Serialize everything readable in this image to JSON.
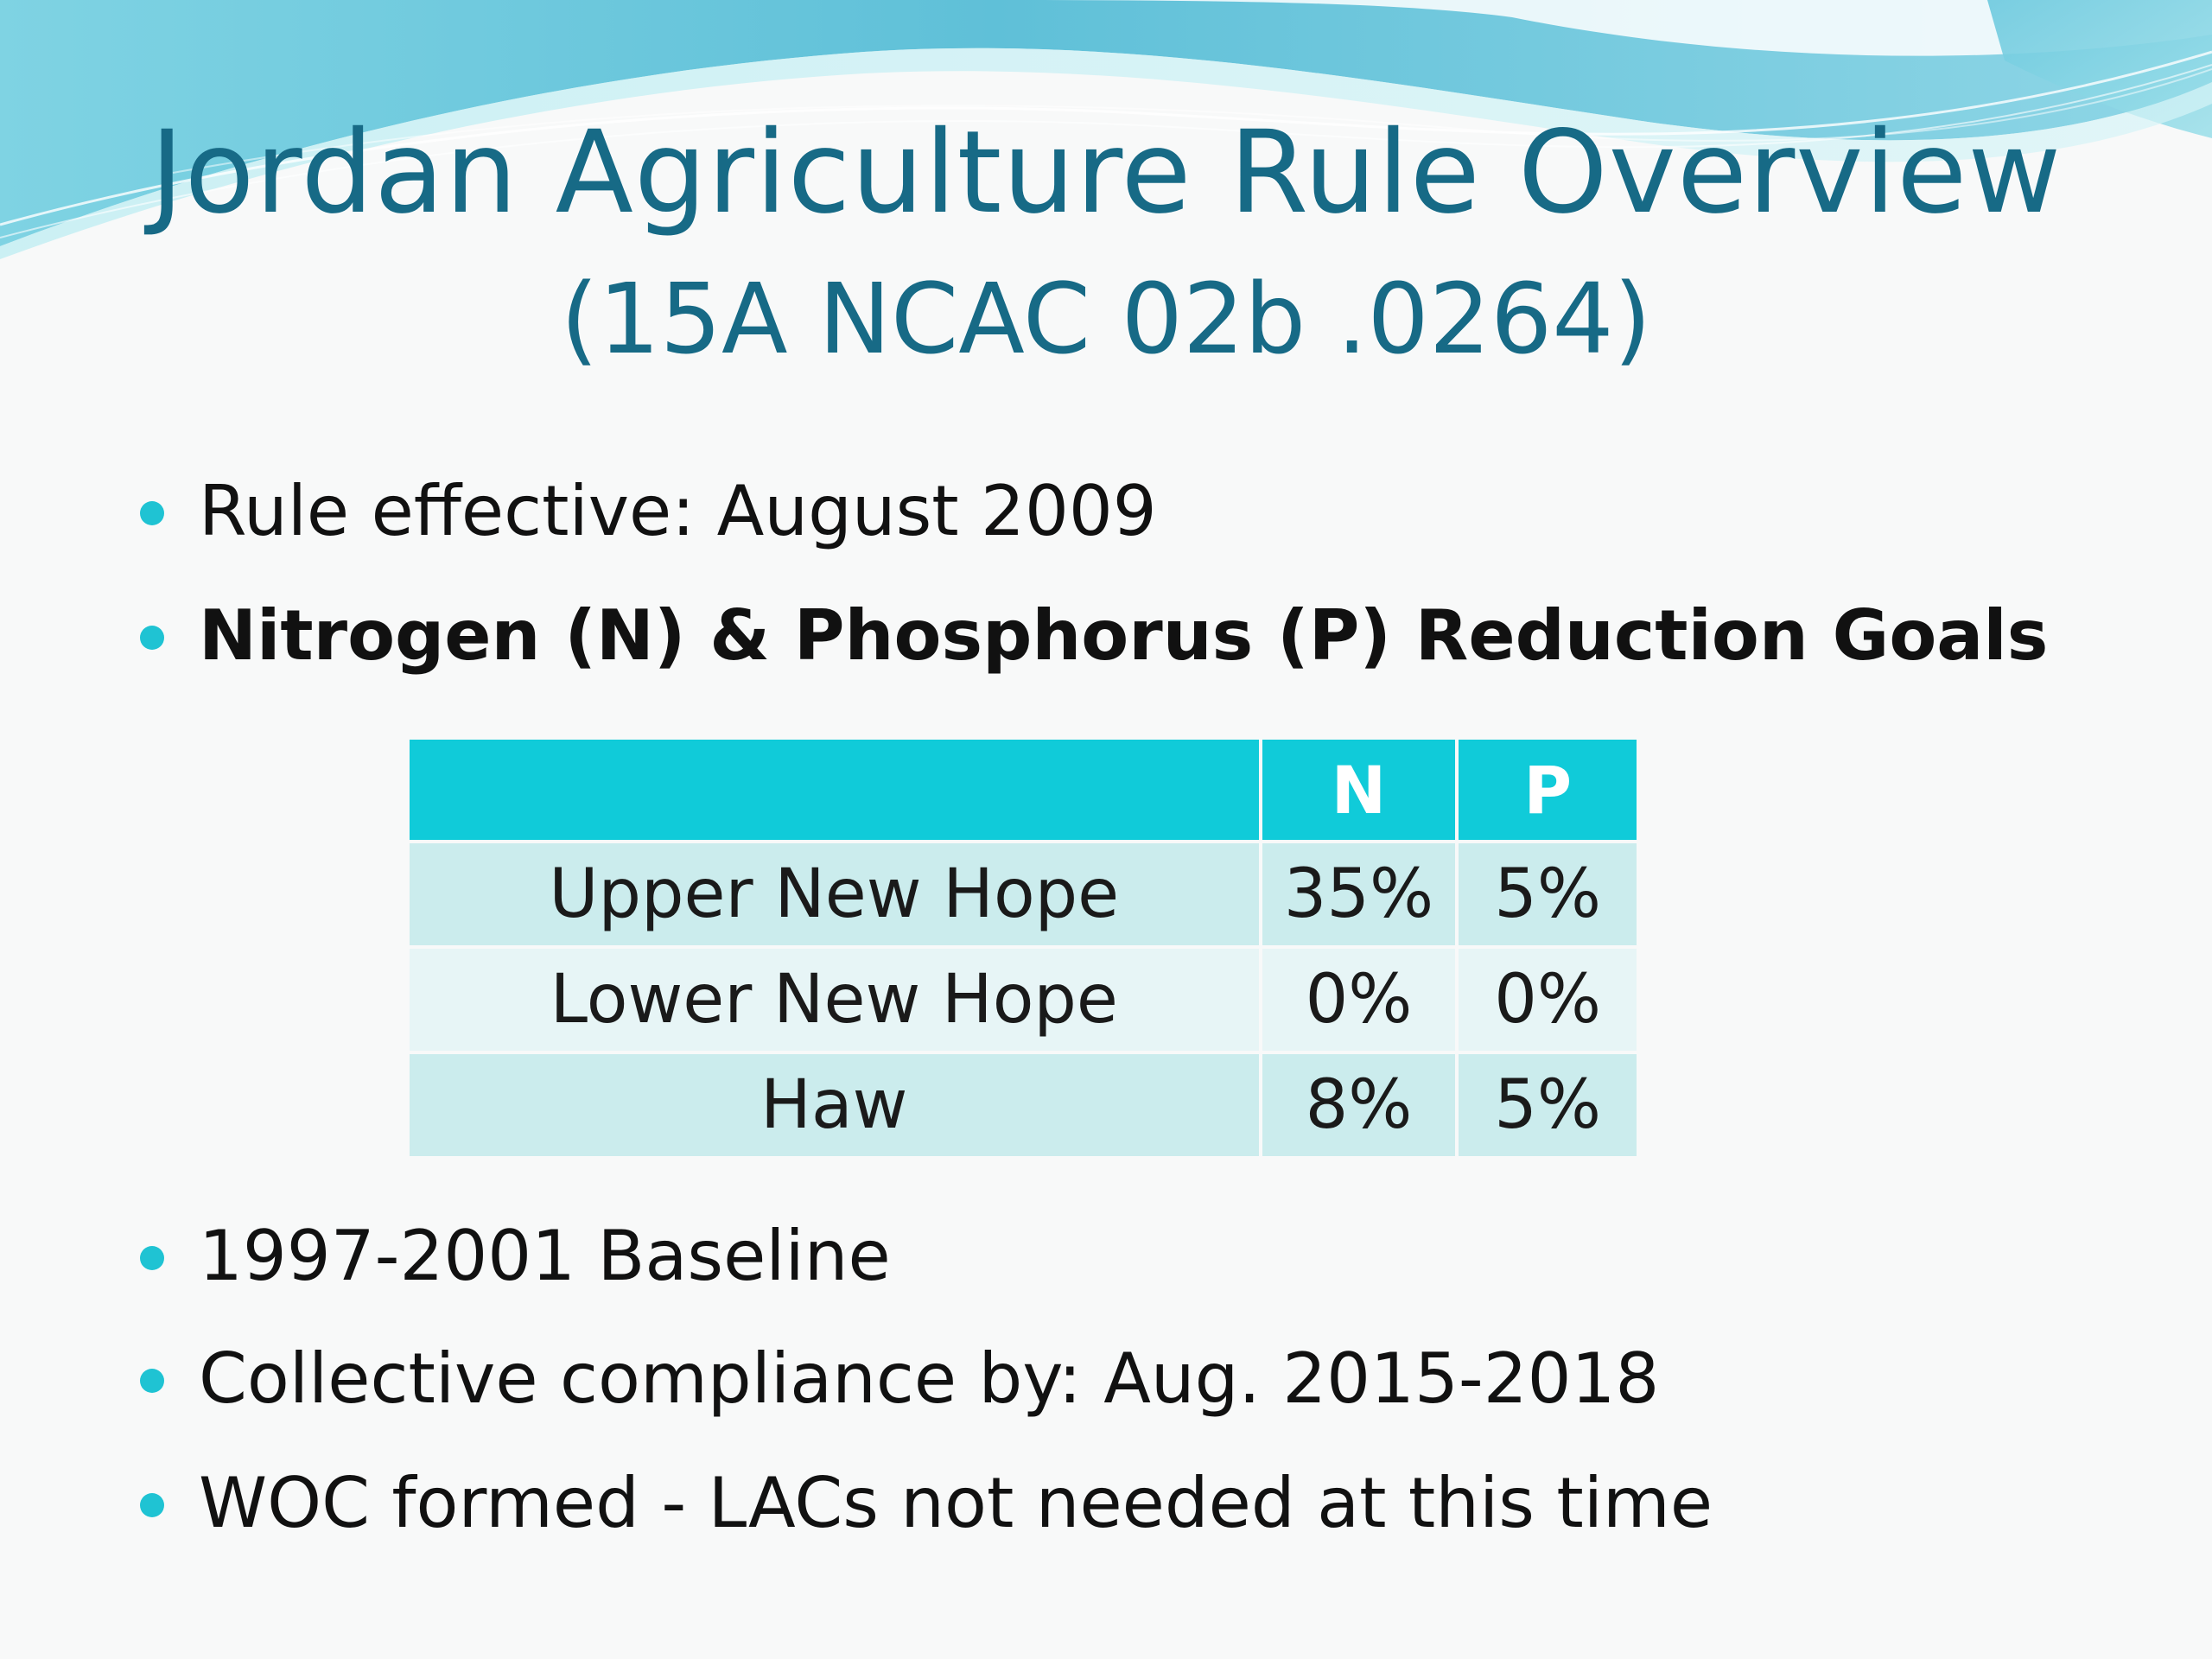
{
  "slide": {
    "title": "Jordan Agriculture Rule Overview",
    "subtitle": "(15A NCAC 02b .0264)",
    "accent_color": "#1fc3d3",
    "title_color": "#176a86",
    "bullets_top": [
      {
        "text": "Rule effective: August 2009",
        "bold": false
      },
      {
        "text": "Nitrogen (N) & Phosphorus (P) Reduction Goals",
        "bold": true
      }
    ],
    "table": {
      "headers": [
        "",
        "N",
        "P"
      ],
      "header_color": "#10cbd9",
      "rows": [
        {
          "name": "Upper New Hope",
          "n": "35%",
          "p": "5%"
        },
        {
          "name": "Lower New Hope",
          "n": "0%",
          "p": "0%"
        },
        {
          "name": "Haw",
          "n": "8%",
          "p": "5%"
        }
      ]
    },
    "bullets_bottom": [
      {
        "text": "1997-2001 Baseline",
        "bold": false
      },
      {
        "text": "Collective compliance by: Aug. 2015-2018",
        "bold": false
      },
      {
        "text": "WOC formed - LACs not needed at this time",
        "bold": false
      }
    ]
  }
}
